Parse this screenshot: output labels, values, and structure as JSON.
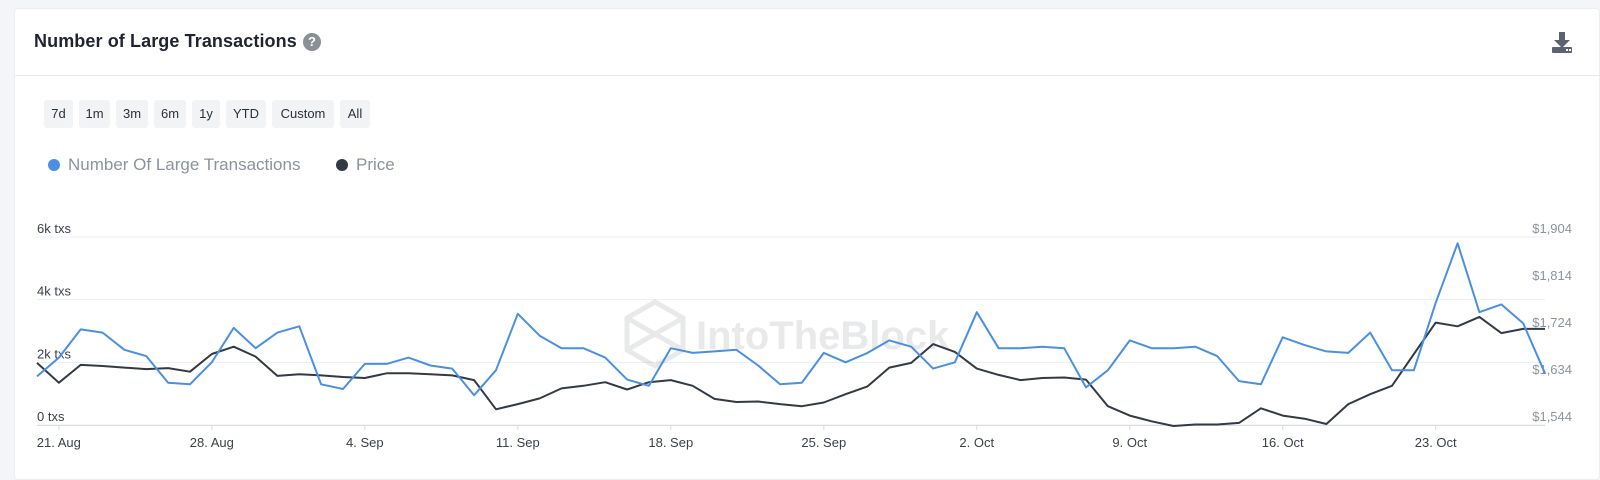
{
  "header": {
    "title": "Number of Large Transactions",
    "help_icon": "question-circle-icon",
    "download_icon": "download-icon"
  },
  "range_buttons": [
    "7d",
    "1m",
    "3m",
    "6m",
    "1y",
    "YTD",
    "Custom",
    "All"
  ],
  "watermark": "IntoTheBlock",
  "colors": {
    "transactions": "#4a90e2",
    "price": "#333a44",
    "grid": "#eceef1",
    "axis_text": "#8b93a0"
  },
  "chart_data": {
    "type": "line",
    "legend_position": "top-left",
    "grid": true,
    "x_labels": [
      "21. Aug",
      "28. Aug",
      "4. Sep",
      "11. Sep",
      "18. Sep",
      "25. Sep",
      "2. Oct",
      "9. Oct",
      "16. Oct",
      "23. Oct"
    ],
    "x": [
      "2023-08-20",
      "2023-08-21",
      "2023-08-22",
      "2023-08-23",
      "2023-08-24",
      "2023-08-25",
      "2023-08-26",
      "2023-08-27",
      "2023-08-28",
      "2023-08-29",
      "2023-08-30",
      "2023-08-31",
      "2023-09-01",
      "2023-09-02",
      "2023-09-03",
      "2023-09-04",
      "2023-09-05",
      "2023-09-06",
      "2023-09-07",
      "2023-09-08",
      "2023-09-09",
      "2023-09-10",
      "2023-09-11",
      "2023-09-12",
      "2023-09-13",
      "2023-09-14",
      "2023-09-15",
      "2023-09-16",
      "2023-09-17",
      "2023-09-18",
      "2023-09-19",
      "2023-09-20",
      "2023-09-21",
      "2023-09-22",
      "2023-09-23",
      "2023-09-24",
      "2023-09-25",
      "2023-09-26",
      "2023-09-27",
      "2023-09-28",
      "2023-09-29",
      "2023-09-30",
      "2023-10-01",
      "2023-10-02",
      "2023-10-03",
      "2023-10-04",
      "2023-10-05",
      "2023-10-06",
      "2023-10-07",
      "2023-10-08",
      "2023-10-09",
      "2023-10-10",
      "2023-10-11",
      "2023-10-12",
      "2023-10-13",
      "2023-10-14",
      "2023-10-15",
      "2023-10-16",
      "2023-10-17",
      "2023-10-18",
      "2023-10-19",
      "2023-10-20",
      "2023-10-21",
      "2023-10-22",
      "2023-10-23",
      "2023-10-24",
      "2023-10-25",
      "2023-10-26",
      "2023-10-27",
      "2023-10-28"
    ],
    "left_axis": {
      "ticks": [
        "0 txs",
        "2k txs",
        "4k txs",
        "6k txs"
      ],
      "range": [
        0,
        6000
      ]
    },
    "right_axis": {
      "ticks": [
        "$1,544",
        "$1,634",
        "$1,724",
        "$1,814",
        "$1,904"
      ],
      "range": [
        1544,
        1904
      ]
    },
    "series": [
      {
        "name": "Number Of Large Transactions",
        "axis": "left",
        "values": [
          1550,
          2150,
          3050,
          2950,
          2400,
          2200,
          1350,
          1300,
          2000,
          3100,
          2450,
          2950,
          3150,
          1300,
          1150,
          1950,
          1950,
          2150,
          1900,
          1800,
          950,
          1750,
          3550,
          2850,
          2450,
          2450,
          2150,
          1450,
          1250,
          2450,
          2300,
          2350,
          2400,
          1900,
          1300,
          1350,
          2300,
          2000,
          2300,
          2700,
          2500,
          1800,
          2000,
          3600,
          2450,
          2450,
          2500,
          2450,
          1200,
          1750,
          2700,
          2450,
          2450,
          2500,
          2200,
          1400,
          1300,
          2800,
          2550,
          2350,
          2300,
          2950,
          1750,
          1750,
          3900,
          5800,
          3600,
          3850,
          3250,
          1650
        ]
      },
      {
        "name": "Price",
        "axis": "right",
        "values": [
          1663,
          1625,
          1659,
          1657,
          1654,
          1651,
          1653,
          1646,
          1680,
          1694,
          1675,
          1638,
          1641,
          1639,
          1636,
          1634,
          1643,
          1643,
          1641,
          1639,
          1630,
          1574,
          1584,
          1595,
          1614,
          1619,
          1626,
          1612,
          1626,
          1630,
          1619,
          1594,
          1588,
          1589,
          1584,
          1580,
          1587,
          1603,
          1618,
          1654,
          1663,
          1699,
          1684,
          1652,
          1640,
          1630,
          1634,
          1635,
          1631,
          1580,
          1562,
          1551,
          1542,
          1545,
          1545,
          1548,
          1576,
          1562,
          1556,
          1546,
          1584,
          1603,
          1619,
          1680,
          1740,
          1733,
          1751,
          1720,
          1728,
          1728
        ]
      }
    ]
  }
}
